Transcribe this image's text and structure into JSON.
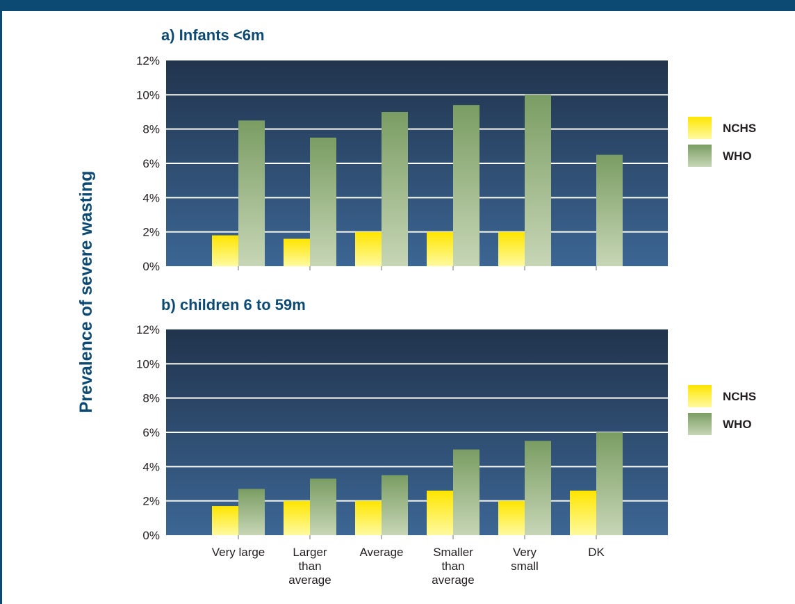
{
  "chart_data": {
    "type": "bar",
    "ylabel": "Prevalence of severe wasting",
    "categories": [
      "Very large",
      "Larger than average",
      "Average",
      "Smaller than average",
      "Very small",
      "DK"
    ],
    "category_lines": [
      [
        "Very large"
      ],
      [
        "Larger",
        "than",
        "average"
      ],
      [
        "Average"
      ],
      [
        "Smaller",
        "than",
        "average"
      ],
      [
        "Very",
        "small"
      ],
      [
        "DK"
      ]
    ],
    "y_ticks": [
      "0%",
      "2%",
      "4%",
      "6%",
      "8%",
      "10%",
      "12%"
    ],
    "ylim": [
      0,
      12
    ],
    "grid": true,
    "legend_position": "right",
    "panels": [
      {
        "title": "a) Infants <6m",
        "series": [
          {
            "name": "NCHS",
            "values": [
              1.8,
              1.6,
              2.0,
              2.0,
              2.0,
              0
            ]
          },
          {
            "name": "WHO",
            "values": [
              8.5,
              7.5,
              9.0,
              9.4,
              10.0,
              6.5
            ]
          }
        ]
      },
      {
        "title": "b) children 6 to 59m",
        "series": [
          {
            "name": "NCHS",
            "values": [
              1.7,
              2.0,
              2.0,
              2.6,
              2.0,
              2.6
            ]
          },
          {
            "name": "WHO",
            "values": [
              2.7,
              3.3,
              3.5,
              5.0,
              5.5,
              6.0
            ]
          }
        ]
      }
    ],
    "colors": {
      "nchs_top": "#ffe500",
      "nchs_bottom": "#fffaa0",
      "who_top": "#7a9d63",
      "who_bottom": "#c7d6b6",
      "plot_top": "#21344d",
      "plot_bottom": "#3c6694",
      "accent": "#0c4a73"
    }
  }
}
